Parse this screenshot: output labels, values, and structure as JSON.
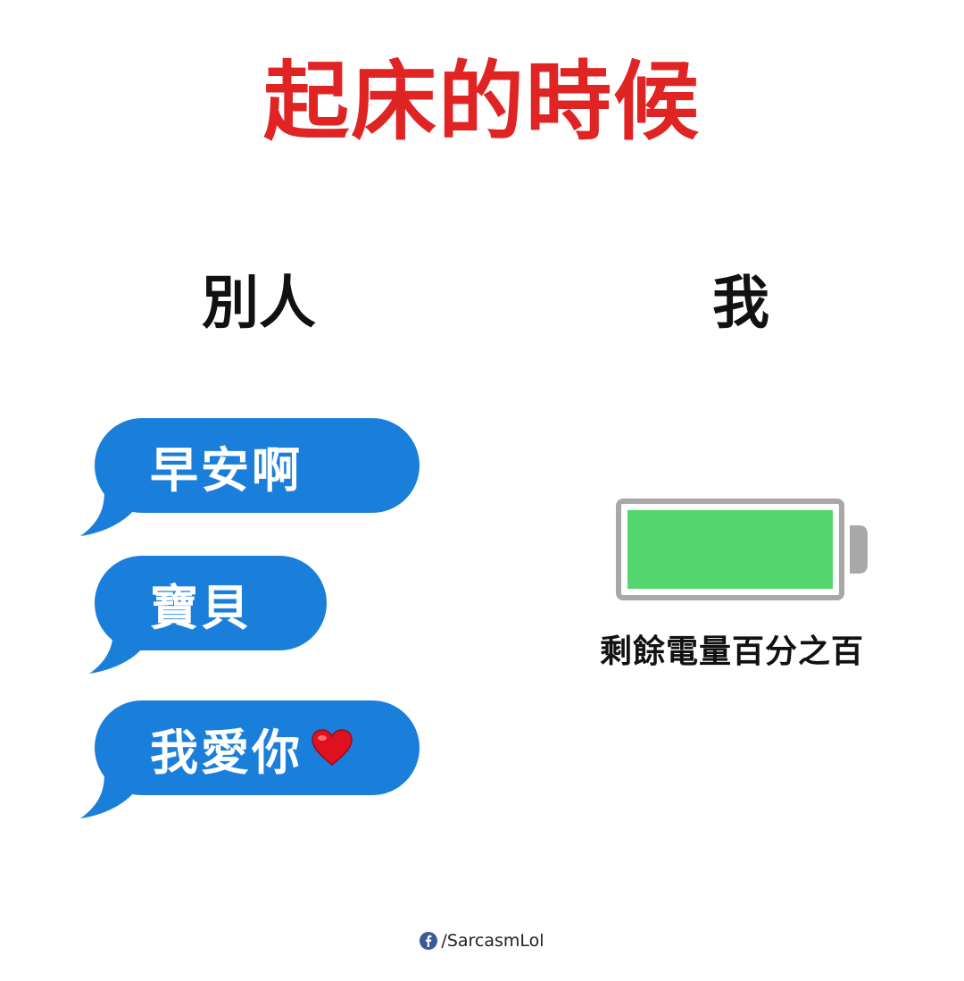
{
  "title": "起床的時候",
  "colors": {
    "title": "#e02424",
    "bubble": "#1a7fdb",
    "battery_fill": "#52d66d",
    "battery_frame": "#a8a8a8",
    "facebook": "#3b5998"
  },
  "left_column": {
    "heading": "別人",
    "messages": [
      {
        "text": "早安啊"
      },
      {
        "text": "寶貝"
      },
      {
        "text": "我愛你",
        "emoji": "red-heart"
      }
    ]
  },
  "right_column": {
    "heading": "我",
    "battery": {
      "charge": 1.0,
      "caption": "剩餘電量百分之百"
    }
  },
  "credit": {
    "icon": "facebook-icon",
    "handle": "/SarcasmLol"
  }
}
